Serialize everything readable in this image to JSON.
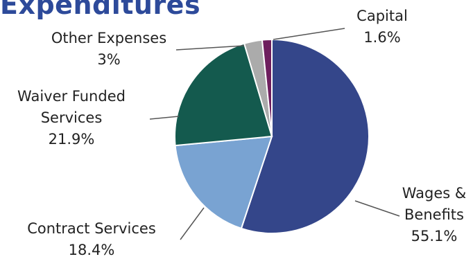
{
  "chart_data": {
    "type": "pie",
    "title": "Expenditures",
    "slices": [
      {
        "key": "wages",
        "lines": [
          "Wages &",
          "Benefits"
        ],
        "pct_label": "55.1%",
        "value": 55.1,
        "color": "#34468a"
      },
      {
        "key": "contract",
        "lines": [
          "Contract Services"
        ],
        "pct_label": "18.4%",
        "value": 18.4,
        "color": "#79a3d2"
      },
      {
        "key": "waiver",
        "lines": [
          "Waiver Funded",
          "Services"
        ],
        "pct_label": "21.9%",
        "value": 21.9,
        "color": "#145a4e"
      },
      {
        "key": "other",
        "lines": [
          "Other Expenses"
        ],
        "pct_label": "3%",
        "value": 3.0,
        "color": "#ababab"
      },
      {
        "key": "capital",
        "lines": [
          "Capital"
        ],
        "pct_label": "1.6%",
        "value": 1.6,
        "color": "#6e1e5e"
      }
    ]
  }
}
